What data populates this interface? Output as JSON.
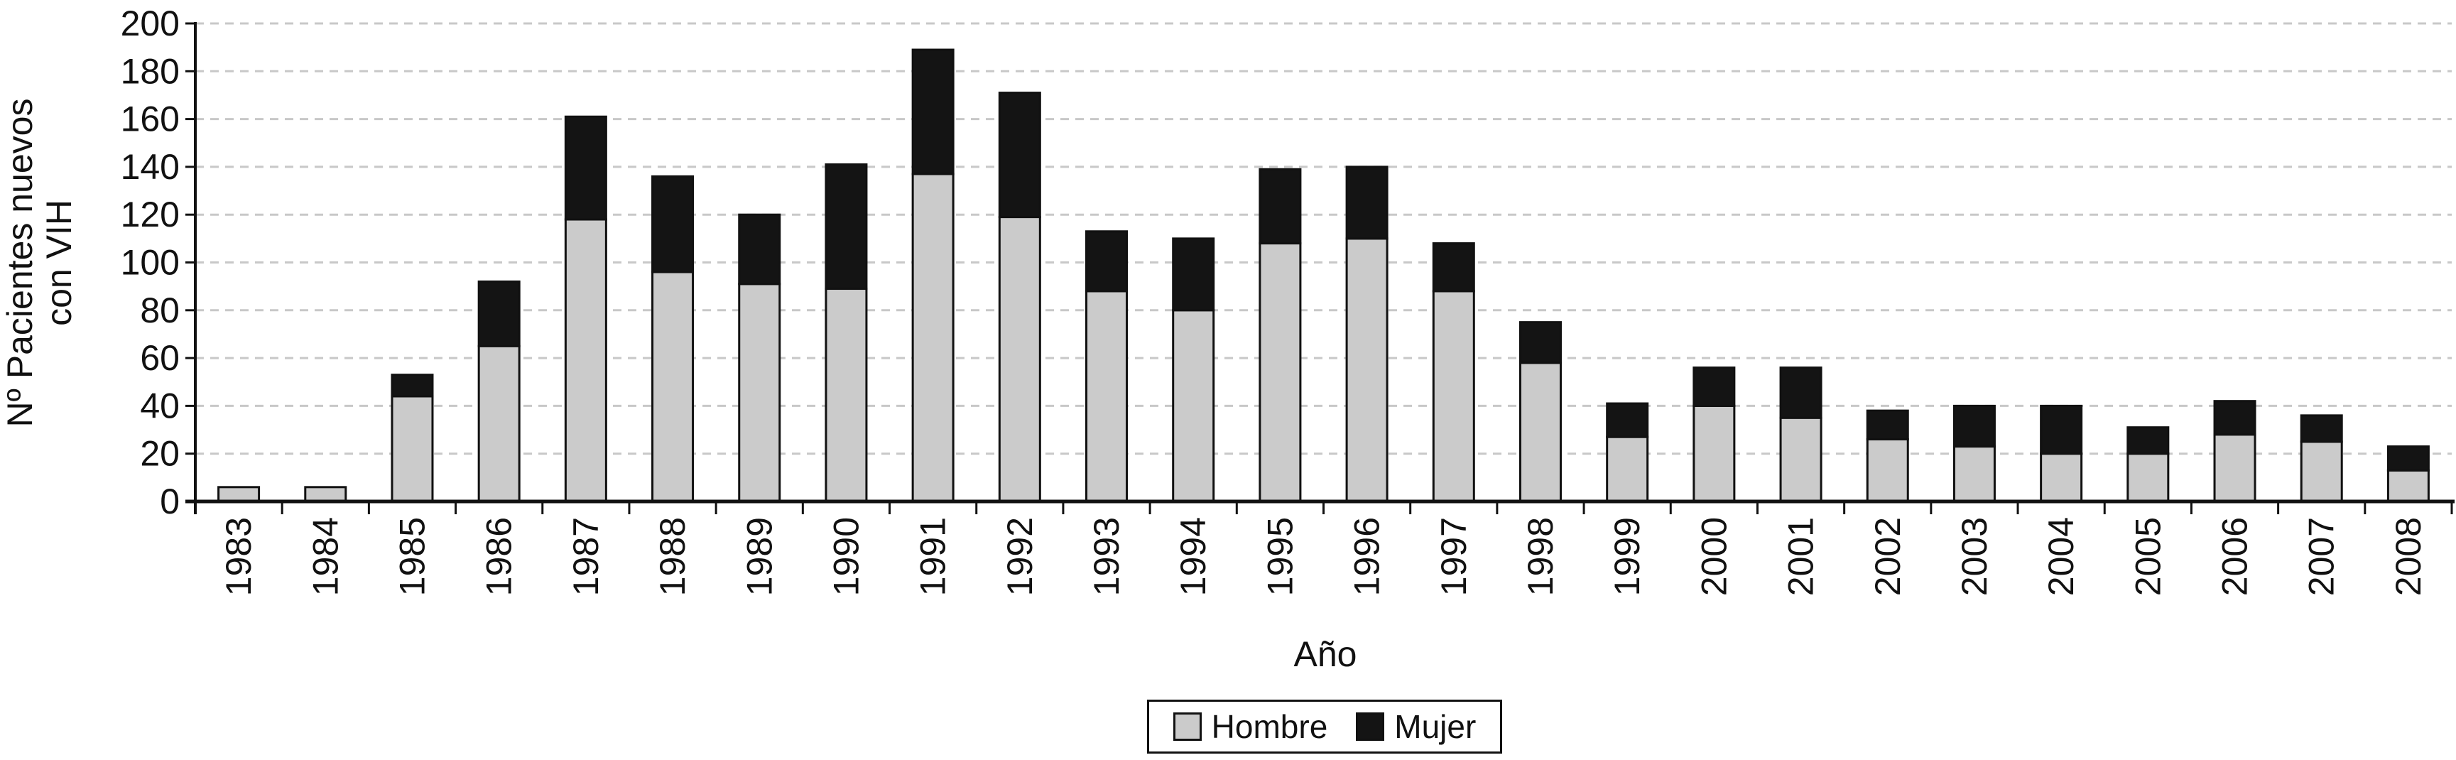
{
  "chart_data": {
    "type": "bar",
    "stacked": true,
    "xlabel": "Año",
    "ylabel": [
      "Nº Pacientes nuevos",
      "con VIH"
    ],
    "ylim": [
      0,
      200
    ],
    "yticks": [
      0,
      20,
      40,
      60,
      80,
      100,
      120,
      140,
      160,
      180,
      200
    ],
    "grid": "horizontal dashed",
    "legend_position": "bottom",
    "categories": [
      "1983",
      "1984",
      "1985",
      "1986",
      "1987",
      "1988",
      "1989",
      "1990",
      "1991",
      "1992",
      "1993",
      "1994",
      "1995",
      "1996",
      "1997",
      "1998",
      "1999",
      "2000",
      "2001",
      "2002",
      "2003",
      "2004",
      "2005",
      "2006",
      "2007",
      "2008"
    ],
    "series": [
      {
        "name": "Hombre",
        "color": "#cbcbcb",
        "values": [
          6,
          6,
          44,
          65,
          118,
          96,
          91,
          89,
          137,
          119,
          88,
          80,
          108,
          110,
          88,
          58,
          27,
          40,
          35,
          26,
          23,
          20,
          20,
          28,
          25,
          13
        ]
      },
      {
        "name": "Mujer",
        "color": "#141414",
        "values": [
          0,
          0,
          9,
          27,
          43,
          40,
          29,
          52,
          52,
          52,
          25,
          30,
          31,
          30,
          20,
          17,
          14,
          16,
          21,
          12,
          17,
          20,
          11,
          14,
          11,
          10
        ]
      }
    ]
  }
}
